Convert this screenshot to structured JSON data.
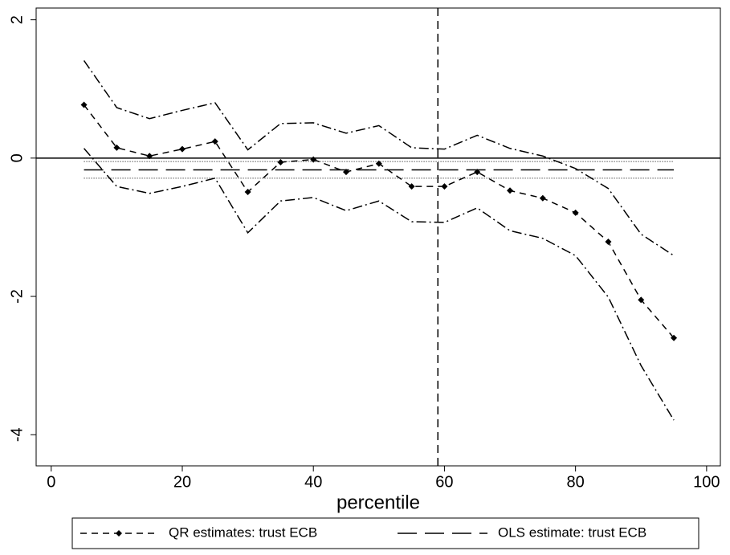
{
  "chart_data": {
    "type": "line",
    "x_label": "percentile",
    "x": [
      5,
      10,
      15,
      20,
      25,
      30,
      35,
      40,
      45,
      50,
      55,
      60,
      65,
      70,
      75,
      80,
      85,
      90,
      95
    ],
    "series": [
      {
        "name": "QR estimates: trust ECB",
        "color": "#000000",
        "values": [
          0.77,
          0.15,
          0.03,
          0.13,
          0.24,
          -0.49,
          -0.06,
          -0.02,
          -0.2,
          -0.08,
          -0.41,
          -0.41,
          -0.2,
          -0.47,
          -0.58,
          -0.79,
          -1.21,
          -2.05,
          -2.6
        ]
      },
      {
        "color": "#000000",
        "values": [
          1.41,
          0.73,
          0.57,
          0.69,
          0.8,
          0.12,
          0.5,
          0.51,
          0.36,
          0.47,
          0.15,
          0.13,
          0.33,
          0.14,
          0.03,
          -0.15,
          -0.44,
          -1.1,
          -1.41
        ]
      },
      {
        "color": "#000000",
        "values": [
          0.14,
          -0.41,
          -0.51,
          -0.41,
          -0.29,
          -1.08,
          -0.62,
          -0.57,
          -0.76,
          -0.62,
          -0.92,
          -0.93,
          -0.72,
          -1.05,
          -1.16,
          -1.41,
          -2.01,
          -3.0,
          -3.79
        ]
      }
    ],
    "ols": {
      "name": "OLS estimate: trust ECB",
      "value": -0.17,
      "lower": -0.29,
      "upper": -0.05
    },
    "hline": 0,
    "vline": 59,
    "xlim": [
      -2.3,
      102.1
    ],
    "ylim": [
      -4.45,
      2.17
    ],
    "xticks": [
      0,
      20,
      40,
      60,
      80,
      100
    ],
    "yticks": [
      -4,
      -2,
      0,
      2
    ],
    "legend": "bottom"
  }
}
